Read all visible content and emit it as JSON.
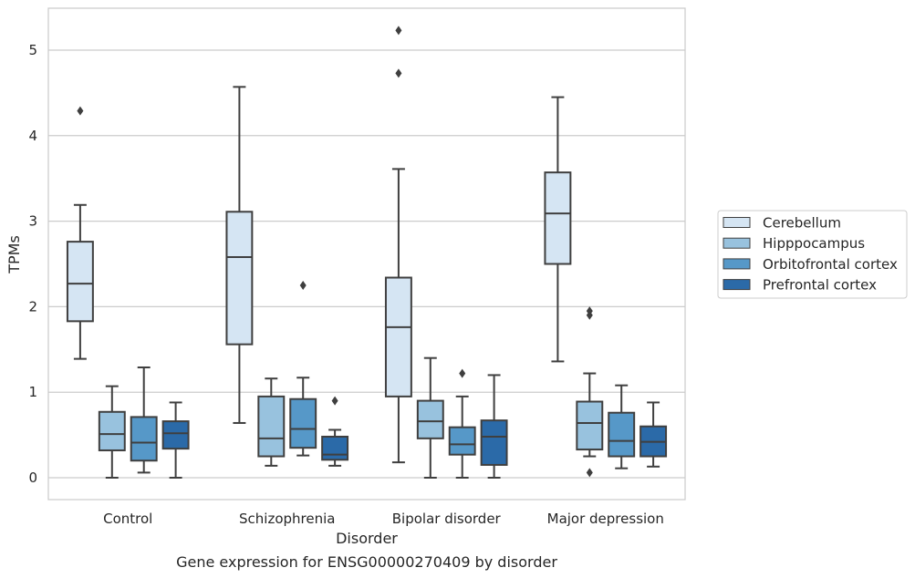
{
  "chart_data": {
    "type": "box",
    "caption": "Gene expression for ENSG00000270409 by disorder",
    "xlabel": "Disorder",
    "ylabel": "TPMs",
    "categories": [
      "Control",
      "Schizophrenia",
      "Bipolar disorder",
      "Major depression"
    ],
    "yticks": [
      "0",
      "1",
      "2",
      "3",
      "4",
      "5"
    ],
    "ylim": [
      -0.25,
      5.5
    ],
    "grid": true,
    "legend_position": "center-right",
    "series": [
      {
        "name": "Cerebellum",
        "color": "#d5e5f3",
        "boxes": [
          {
            "whislo": 1.39,
            "q1": 1.83,
            "med": 2.27,
            "q3": 2.76,
            "whishi": 3.19,
            "fliers": [
              4.29
            ]
          },
          {
            "whislo": 0.64,
            "q1": 1.56,
            "med": 2.58,
            "q3": 3.11,
            "whishi": 4.57,
            "fliers": []
          },
          {
            "whislo": 0.18,
            "q1": 0.95,
            "med": 1.76,
            "q3": 2.34,
            "whishi": 3.61,
            "fliers": [
              4.73,
              5.23
            ]
          },
          {
            "whislo": 1.36,
            "q1": 2.5,
            "med": 3.09,
            "q3": 3.57,
            "whishi": 4.45,
            "fliers": []
          }
        ]
      },
      {
        "name": "Hipppocampus",
        "color": "#98c2de",
        "boxes": [
          {
            "whislo": 0.0,
            "q1": 0.32,
            "med": 0.51,
            "q3": 0.77,
            "whishi": 1.07,
            "fliers": []
          },
          {
            "whislo": 0.14,
            "q1": 0.25,
            "med": 0.46,
            "q3": 0.95,
            "whishi": 1.16,
            "fliers": []
          },
          {
            "whislo": 0.0,
            "q1": 0.46,
            "med": 0.66,
            "q3": 0.9,
            "whishi": 1.4,
            "fliers": []
          },
          {
            "whislo": 0.25,
            "q1": 0.33,
            "med": 0.64,
            "q3": 0.89,
            "whishi": 1.22,
            "fliers": [
              0.06,
              1.9,
              1.95
            ]
          }
        ]
      },
      {
        "name": "Orbitofrontal cortex",
        "color": "#5698c8",
        "boxes": [
          {
            "whislo": 0.06,
            "q1": 0.2,
            "med": 0.41,
            "q3": 0.71,
            "whishi": 1.29,
            "fliers": []
          },
          {
            "whislo": 0.26,
            "q1": 0.35,
            "med": 0.57,
            "q3": 0.92,
            "whishi": 1.17,
            "fliers": [
              2.25
            ]
          },
          {
            "whislo": 0.0,
            "q1": 0.27,
            "med": 0.39,
            "q3": 0.59,
            "whishi": 0.95,
            "fliers": [
              1.22
            ]
          },
          {
            "whislo": 0.11,
            "q1": 0.25,
            "med": 0.43,
            "q3": 0.76,
            "whishi": 1.08,
            "fliers": []
          }
        ]
      },
      {
        "name": "Prefrontal cortex",
        "color": "#2b6aa8",
        "boxes": [
          {
            "whislo": 0.0,
            "q1": 0.34,
            "med": 0.52,
            "q3": 0.66,
            "whishi": 0.88,
            "fliers": []
          },
          {
            "whislo": 0.14,
            "q1": 0.21,
            "med": 0.27,
            "q3": 0.48,
            "whishi": 0.56,
            "fliers": [
              0.9
            ]
          },
          {
            "whislo": 0.0,
            "q1": 0.15,
            "med": 0.48,
            "q3": 0.67,
            "whishi": 1.2,
            "fliers": []
          },
          {
            "whislo": 0.13,
            "q1": 0.25,
            "med": 0.42,
            "q3": 0.6,
            "whishi": 0.88,
            "fliers": []
          }
        ]
      }
    ]
  }
}
